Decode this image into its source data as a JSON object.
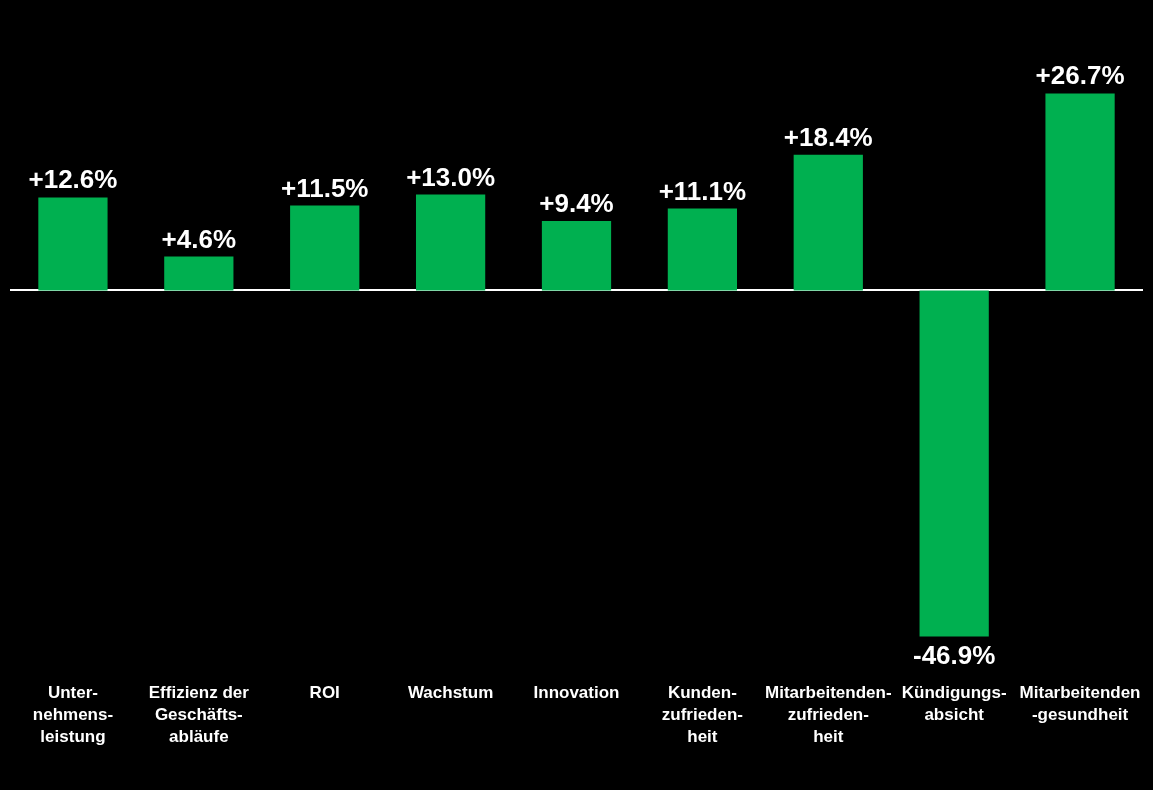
{
  "chart_data": {
    "type": "bar",
    "categories": [
      "Unter-\nnehmens-\nleistung",
      "Effizienz der\nGeschäfts-\nabläufe",
      "ROI",
      "Wachstum",
      "Innovation",
      "Kunden-\nzufrieden-\nheit",
      "Mitarbeitenden-\nzufrieden-\nheit",
      "Kündigungs-\nabsicht",
      "Mitarbeitenden\n-gesundheit"
    ],
    "values": [
      12.6,
      4.6,
      11.5,
      13.0,
      9.4,
      11.1,
      18.4,
      -46.9,
      26.7
    ],
    "value_labels": [
      "+12.6%",
      "+4.6%",
      "+11.5%",
      "+13.0%",
      "+9.4%",
      "+11.1%",
      "+18.4%",
      "-46.9%",
      "+26.7%"
    ],
    "color": "#00b050"
  }
}
